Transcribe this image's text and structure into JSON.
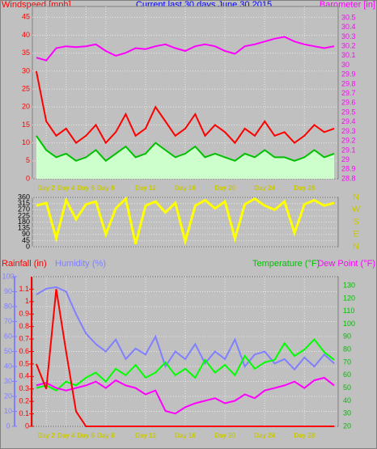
{
  "chart_data": [
    {
      "type": "line",
      "title": "Current last 30 days June 30 2015",
      "ylabel": "Windspeed [mph]",
      "y2label": "Barometer [in]",
      "x": [
        1,
        2,
        3,
        4,
        5,
        6,
        7,
        8,
        9,
        10,
        11,
        12,
        13,
        14,
        15,
        16,
        17,
        18,
        19,
        20,
        21,
        22,
        23,
        24,
        25,
        26,
        27,
        28,
        29,
        30,
        31
      ],
      "xlim": [
        0.6,
        31.4
      ],
      "xticks": [
        {
          "value": 2,
          "label": "Day 2"
        },
        {
          "value": 4,
          "label": "Day 4"
        },
        {
          "value": 6,
          "label": "Day 6"
        },
        {
          "value": 8,
          "label": "Day 8"
        },
        {
          "value": 12,
          "label": "Day 12"
        },
        {
          "value": 16,
          "label": "Day 16"
        },
        {
          "value": 20,
          "label": "Day 20"
        },
        {
          "value": 24,
          "label": "Day 24"
        },
        {
          "value": 28,
          "label": "Day 28"
        }
      ],
      "ylim": [
        0,
        48
      ],
      "yticks": [
        0,
        5,
        10,
        15,
        20,
        25,
        30,
        35,
        40,
        45
      ],
      "y2lim": [
        28.8,
        30.62
      ],
      "y2ticks": [
        28.8,
        28.9,
        29,
        29.1,
        29.2,
        29.3,
        29.4,
        29.5,
        29.6,
        29.7,
        29.8,
        29.9,
        30,
        30.1,
        30.2,
        30.3,
        30.4,
        30.5
      ],
      "grid": true,
      "series": [
        {
          "color": "#ccffcc",
          "fill": true,
          "values": [
            12,
            8,
            6,
            7,
            5,
            6,
            8,
            5,
            7,
            9,
            6,
            7,
            10,
            8,
            6,
            7,
            9,
            6,
            7,
            6,
            5,
            7,
            6,
            8,
            6,
            6,
            5,
            6,
            8,
            6,
            7
          ]
        },
        {
          "color": "#ff0000",
          "values": [
            30,
            16,
            12,
            14,
            10,
            12,
            15,
            10,
            13,
            18,
            12,
            14,
            20,
            16,
            12,
            14,
            18,
            12,
            15,
            13,
            10,
            14,
            12,
            16,
            12,
            13,
            10,
            12,
            15,
            13,
            14
          ]
        },
        {
          "color": "#00c000",
          "values": [
            12,
            8,
            6,
            7,
            5,
            6,
            8,
            5,
            7,
            9,
            6,
            7,
            10,
            8,
            6,
            7,
            9,
            6,
            7,
            6,
            5,
            7,
            6,
            8,
            6,
            6,
            5,
            6,
            8,
            6,
            7
          ]
        },
        {
          "color": "#ff00ff",
          "axis": "y2",
          "values": [
            30.08,
            30.05,
            30.18,
            30.2,
            30.19,
            30.2,
            30.22,
            30.15,
            30.1,
            30.13,
            30.18,
            30.17,
            30.2,
            30.22,
            30.18,
            30.15,
            30.2,
            30.22,
            30.2,
            30.15,
            30.12,
            30.2,
            30.22,
            30.25,
            30.28,
            30.3,
            30.25,
            30.22,
            30.2,
            30.18,
            30.2
          ]
        }
      ]
    },
    {
      "type": "line",
      "x": [
        1,
        2,
        3,
        4,
        5,
        6,
        7,
        8,
        9,
        10,
        11,
        12,
        13,
        14,
        15,
        16,
        17,
        18,
        19,
        20,
        21,
        22,
        23,
        24,
        25,
        26,
        27,
        28,
        29,
        30,
        31
      ],
      "xlim": [
        0.6,
        31.4
      ],
      "ylim": [
        0,
        360
      ],
      "yticks": [
        0,
        45,
        90,
        135,
        180,
        225,
        270,
        315,
        360
      ],
      "y2lim": [
        0,
        360
      ],
      "y2ticks": [
        {
          "value": 360,
          "label": "N"
        },
        {
          "value": 270,
          "label": "W"
        },
        {
          "value": 180,
          "label": "S"
        },
        {
          "value": 90,
          "label": "E"
        },
        {
          "value": 0,
          "label": "N"
        }
      ],
      "grid": true,
      "series": [
        {
          "color": "#ffff00",
          "values": [
            300,
            320,
            60,
            340,
            200,
            310,
            330,
            90,
            280,
            350,
            20,
            300,
            330,
            250,
            320,
            40,
            300,
            340,
            280,
            330,
            60,
            310,
            350,
            300,
            270,
            330,
            100,
            310,
            340,
            300,
            320
          ]
        }
      ]
    },
    {
      "type": "line",
      "ylabel": "Humidity (%)",
      "y3label": "Rainfall (in)",
      "y2label": "Temperature (°F)",
      "y4label": "Dew Point (°F)",
      "x": [
        1,
        2,
        3,
        4,
        5,
        6,
        7,
        8,
        9,
        10,
        11,
        12,
        13,
        14,
        15,
        16,
        17,
        18,
        19,
        20,
        21,
        22,
        23,
        24,
        25,
        26,
        27,
        28,
        29,
        30,
        31
      ],
      "xlim": [
        0.6,
        31.4
      ],
      "xticks": [
        {
          "value": 2,
          "label": "Day 2"
        },
        {
          "value": 4,
          "label": "Day 4"
        },
        {
          "value": 6,
          "label": "Day 6"
        },
        {
          "value": 8,
          "label": "Day 8"
        },
        {
          "value": 12,
          "label": "Day 12"
        },
        {
          "value": 16,
          "label": "Day 16"
        },
        {
          "value": 20,
          "label": "Day 20"
        },
        {
          "value": 24,
          "label": "Day 24"
        },
        {
          "value": 28,
          "label": "Day 28"
        }
      ],
      "ylim": [
        0,
        100
      ],
      "yticks": [
        0,
        10,
        20,
        30,
        40,
        50,
        60,
        70,
        80,
        90,
        100
      ],
      "y3lim": [
        0,
        1.2
      ],
      "y3ticks": [
        0,
        0.1,
        0.2,
        0.3,
        0.4,
        0.5,
        0.6,
        0.7,
        0.8,
        0.9,
        1,
        1.1
      ],
      "y2lim": [
        20,
        137
      ],
      "y2ticks": [
        20,
        30,
        40,
        50,
        60,
        70,
        80,
        90,
        100,
        110,
        120,
        130
      ],
      "grid": true,
      "series": [
        {
          "color": "#8080ff",
          "values": [
            88,
            92,
            93,
            90,
            75,
            62,
            55,
            50,
            58,
            45,
            52,
            48,
            60,
            40,
            50,
            45,
            55,
            42,
            50,
            45,
            58,
            40,
            48,
            50,
            42,
            45,
            38,
            46,
            40,
            48,
            42
          ]
        },
        {
          "color": "#00ff00",
          "axis": "y2",
          "values": [
            50,
            52,
            48,
            55,
            52,
            58,
            62,
            55,
            65,
            60,
            68,
            58,
            62,
            70,
            60,
            65,
            58,
            72,
            62,
            68,
            60,
            75,
            65,
            70,
            72,
            85,
            75,
            80,
            88,
            78,
            72
          ]
        },
        {
          "color": "#ff00ff",
          "axis": "y2",
          "values": [
            52,
            54,
            50,
            48,
            50,
            52,
            55,
            50,
            56,
            52,
            50,
            45,
            48,
            32,
            30,
            35,
            38,
            40,
            42,
            38,
            40,
            45,
            42,
            48,
            50,
            52,
            55,
            50,
            56,
            58,
            52
          ]
        },
        {
          "color": "#ff0000",
          "axis": "y3",
          "values": [
            0.5,
            0.3,
            1.1,
            0.6,
            0.12,
            0,
            0,
            0,
            0,
            0,
            0,
            0,
            0,
            0,
            0,
            0,
            0,
            0,
            0,
            0,
            0,
            0,
            0,
            0,
            0,
            0,
            0,
            0,
            0,
            0,
            0
          ]
        }
      ]
    }
  ]
}
